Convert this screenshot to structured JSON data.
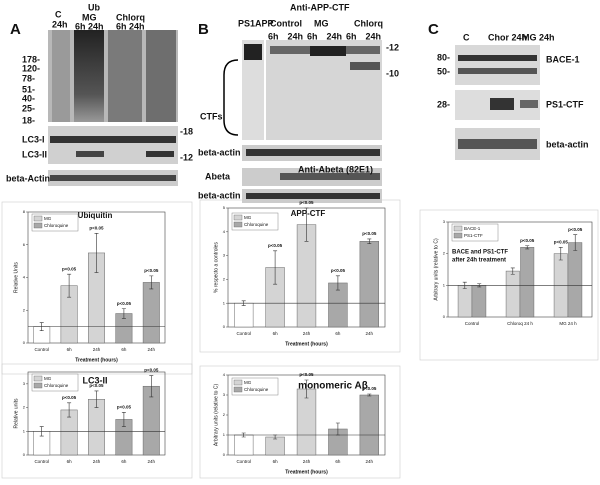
{
  "blot_a": {
    "letter": "A",
    "c": "C",
    "c_time": "24h",
    "ub": "Ub",
    "mg": "MG",
    "mg_times": "6h 24h",
    "chlorq": "Chlorq",
    "chlorq_times": "6h 24h",
    "markers": [
      "178-",
      "120-",
      "78-",
      "51-",
      "40-",
      "25-",
      "18-"
    ],
    "lc3_i": "LC3-I",
    "lc3_ii": "LC3-II",
    "mw_right": [
      "-18",
      "-12"
    ],
    "actin": "beta-Actin"
  },
  "blot_b": {
    "letter": "B",
    "title": "Anti-APP-CTF",
    "lanes": [
      "PS1APP",
      "Control",
      "MG",
      "Chlorq"
    ],
    "times": [
      "6h",
      "24h",
      "6h",
      "24h",
      "6h",
      "24h"
    ],
    "mw_right": [
      "-12",
      "-10"
    ],
    "ctfs": "CTFs",
    "actin_1": "beta-actin",
    "abeta": "Abeta",
    "abeta_antibody": "Anti-Abeta (82E1)",
    "actin_2": "beta-actin"
  },
  "blot_c": {
    "letter": "C",
    "lanes": [
      "C",
      "Chor 24h",
      "MG 24h"
    ],
    "markers": [
      "80-",
      "50-",
      "28-"
    ],
    "labels": [
      "BACE-1",
      "PS1-CTF",
      "beta-actin"
    ]
  },
  "chart_data": [
    {
      "type": "bar",
      "title": "Ubiquitin",
      "ylabel": "Relative Units",
      "xlabel": "Treatment (hours)",
      "categories": [
        "Control",
        "6h",
        "24h",
        "6h",
        "24h"
      ],
      "values": [
        1,
        3.5,
        5.5,
        1.8,
        3.7
      ],
      "errors": [
        0.25,
        0.7,
        1.2,
        0.3,
        0.4
      ],
      "colors": [
        "#ffffff",
        "#d4d4d4",
        "#d4d4d4",
        "#a8a8a8",
        "#a8a8a8"
      ],
      "annotations": [
        null,
        "p<0.05",
        "p<0.05",
        "p<0.05",
        "p<0.05"
      ],
      "legend": [
        {
          "name": "MG",
          "color": "#d4d4d4"
        },
        {
          "name": "Chloroquine",
          "color": "#a8a8a8"
        }
      ],
      "reference_line": 1,
      "ylim": [
        0,
        8
      ],
      "yticks": [
        0,
        2,
        4,
        6,
        8
      ]
    },
    {
      "type": "bar",
      "title": "LC3-II",
      "ylabel": "Relative units",
      "categories": [
        "Control",
        "6h",
        "24h",
        "6h",
        "24h"
      ],
      "values": [
        1,
        1.9,
        2.35,
        1.5,
        2.9
      ],
      "errors": [
        0.2,
        0.3,
        0.35,
        0.3,
        0.45
      ],
      "colors": [
        "#ffffff",
        "#d4d4d4",
        "#d4d4d4",
        "#a8a8a8",
        "#a8a8a8"
      ],
      "annotations": [
        null,
        "p<0.05",
        "p<0.05",
        "p<0.05",
        "p<0.05"
      ],
      "legend": [
        {
          "name": "MG",
          "color": "#d4d4d4"
        },
        {
          "name": "Chloroquine",
          "color": "#a8a8a8"
        }
      ],
      "reference_line": 1,
      "ylim": [
        0,
        3.5
      ],
      "yticks": [
        0,
        1,
        2,
        3
      ]
    },
    {
      "type": "bar",
      "title": "APP-CTF",
      "ylabel": "% respecto a controles",
      "xlabel": "Treatment (hours)",
      "categories": [
        "Control",
        "6h",
        "24h",
        "6h",
        "24h"
      ],
      "values": [
        1,
        2.5,
        4.3,
        1.85,
        3.6
      ],
      "errors": [
        0.1,
        0.7,
        0.7,
        0.3,
        0.1
      ],
      "colors": [
        "#ffffff",
        "#d4d4d4",
        "#d4d4d4",
        "#a8a8a8",
        "#a8a8a8"
      ],
      "annotations": [
        null,
        "p<0.05",
        "p<0.05",
        "p<0.05",
        "p<0.05"
      ],
      "legend": [
        {
          "name": "MG",
          "color": "#d4d4d4"
        },
        {
          "name": "Chloroquine",
          "color": "#a8a8a8"
        }
      ],
      "reference_line": 1,
      "ylim": [
        0,
        5
      ],
      "yticks": [
        0,
        1,
        2,
        3,
        4,
        5
      ]
    },
    {
      "type": "bar",
      "title": "monomeric Aβ",
      "ylabel": "Arbitrary units (relative to C)",
      "xlabel": "Treatment (hours)",
      "categories": [
        "Control",
        "6h",
        "24h",
        "6h",
        "24h"
      ],
      "values": [
        1,
        0.9,
        3.3,
        1.3,
        3.0
      ],
      "errors": [
        0.1,
        0.1,
        0.45,
        0.3,
        0.05
      ],
      "colors": [
        "#ffffff",
        "#d4d4d4",
        "#d4d4d4",
        "#a8a8a8",
        "#a8a8a8"
      ],
      "annotations": [
        null,
        null,
        "p<0.05",
        null,
        "p<0.05"
      ],
      "legend": [
        {
          "name": "MG",
          "color": "#d4d4d4"
        },
        {
          "name": "Chloroquine",
          "color": "#a8a8a8"
        }
      ],
      "reference_line": 1,
      "ylim": [
        0,
        4
      ],
      "yticks": [
        0,
        1,
        2,
        3,
        4
      ]
    },
    {
      "type": "grouped_bar",
      "title": "BACE and PS1-CTF",
      "subtitle": "after 24h treatment",
      "ylabel": "Arbitrary units (relative to C)",
      "categories": [
        "Control",
        "Chloroq 24 h",
        "MG 24 h"
      ],
      "series": [
        {
          "name": "BACE-1",
          "color": "#d4d4d4",
          "values": [
            1,
            1.45,
            2.0
          ],
          "errors": [
            0.1,
            0.1,
            0.2
          ],
          "annotations": [
            null,
            null,
            "p<0.05"
          ]
        },
        {
          "name": "PS1-CTF",
          "color": "#a8a8a8",
          "values": [
            1,
            2.2,
            2.35
          ],
          "errors": [
            0.05,
            0.05,
            0.25
          ],
          "annotations": [
            null,
            "p<0.05",
            "p<0.05"
          ]
        }
      ],
      "reference_line": 1,
      "ylim": [
        0,
        3
      ],
      "yticks": [
        0,
        1,
        2,
        3
      ]
    }
  ]
}
